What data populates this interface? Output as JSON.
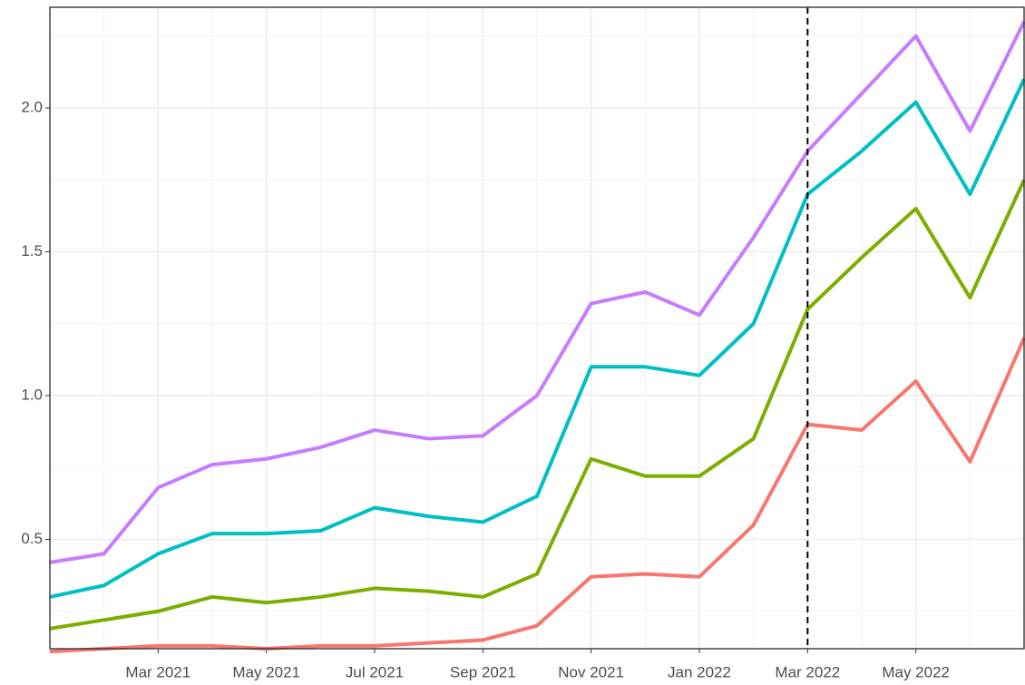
{
  "chart_data": {
    "type": "line",
    "x": [
      "2021-01",
      "2021-02",
      "2021-03",
      "2021-04",
      "2021-05",
      "2021-06",
      "2021-07",
      "2021-08",
      "2021-09",
      "2021-10",
      "2021-11",
      "2021-12",
      "2022-01",
      "2022-02",
      "2022-03",
      "2022-04",
      "2022-05",
      "2022-06",
      "2022-07"
    ],
    "series": [
      {
        "color": "#F8766D",
        "values": [
          0.11,
          0.12,
          0.13,
          0.13,
          0.12,
          0.13,
          0.13,
          0.14,
          0.15,
          0.2,
          0.37,
          0.38,
          0.37,
          0.55,
          0.9,
          0.88,
          1.05,
          0.77,
          1.2
        ]
      },
      {
        "color": "#7CAE00",
        "values": [
          0.19,
          0.22,
          0.25,
          0.3,
          0.28,
          0.3,
          0.33,
          0.32,
          0.3,
          0.38,
          0.78,
          0.72,
          0.72,
          0.85,
          1.3,
          1.48,
          1.65,
          1.34,
          1.75
        ]
      },
      {
        "color": "#00BFC4",
        "values": [
          0.3,
          0.34,
          0.45,
          0.52,
          0.52,
          0.53,
          0.61,
          0.58,
          0.56,
          0.65,
          1.1,
          1.1,
          1.07,
          1.25,
          1.7,
          1.85,
          2.02,
          1.7,
          2.1
        ]
      },
      {
        "color": "#C77CFF",
        "values": [
          0.42,
          0.45,
          0.68,
          0.76,
          0.78,
          0.82,
          0.88,
          0.85,
          0.86,
          1.0,
          1.32,
          1.36,
          1.28,
          1.55,
          1.85,
          2.05,
          2.25,
          1.92,
          2.3
        ]
      }
    ],
    "xlim": [
      "2021-01",
      "2022-07"
    ],
    "xticks": [
      {
        "value": "2021-03",
        "label": "Mar 2021"
      },
      {
        "value": "2021-05",
        "label": "May 2021"
      },
      {
        "value": "2021-07",
        "label": "Jul 2021"
      },
      {
        "value": "2021-09",
        "label": "Sep 2021"
      },
      {
        "value": "2021-11",
        "label": "Nov 2021"
      },
      {
        "value": "2022-01",
        "label": "Jan 2022"
      },
      {
        "value": "2022-03",
        "label": "Mar 2022"
      },
      {
        "value": "2022-05",
        "label": "May 2022"
      }
    ],
    "ylim": [
      0.12,
      2.35
    ],
    "yticks": [
      0.5,
      {
        "value": 1,
        "label": "1.0"
      },
      1.5,
      {
        "value": 2,
        "label": "2.0"
      }
    ],
    "grid": true,
    "vline": "2022-03"
  }
}
